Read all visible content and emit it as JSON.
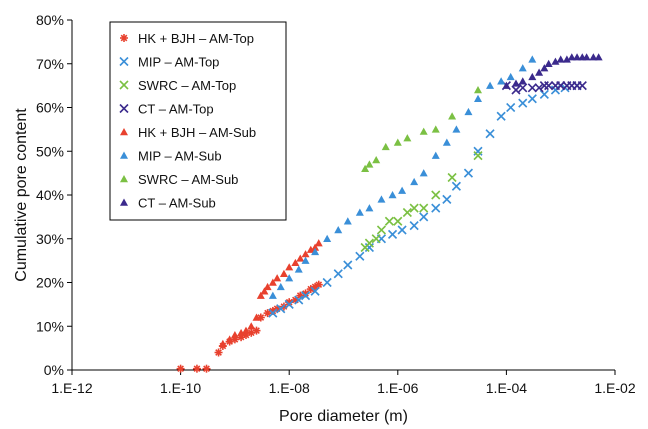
{
  "chart_data": {
    "type": "scatter",
    "title": "",
    "xlabel": "Pore diameter (m)",
    "ylabel": "Cumulative pore content",
    "x_scale": "log",
    "xlim": [
      1e-12,
      0.01
    ],
    "ylim": [
      0,
      0.8
    ],
    "x_ticks": [
      "1.E-12",
      "1.E-10",
      "1.E-08",
      "1.E-06",
      "1.E-04",
      "1.E-02"
    ],
    "y_ticks": [
      "0%",
      "10%",
      "20%",
      "30%",
      "40%",
      "50%",
      "60%",
      "70%",
      "80%"
    ],
    "grid": false,
    "legend_position": "top-left",
    "series": [
      {
        "name": "HK + BJH – AM-Top",
        "marker": "star",
        "color": "#e8412e",
        "x": [
          1e-10,
          2e-10,
          3e-10,
          5e-10,
          6e-10,
          8e-10,
          1e-09,
          1.3e-09,
          1.6e-09,
          2e-09,
          2.5e-09,
          3e-09,
          4e-09,
          5e-09,
          6e-09,
          8e-09,
          1e-08,
          1.3e-08,
          1.6e-08,
          2e-08,
          2.5e-08,
          3e-08,
          3.5e-08
        ],
        "y": [
          0.003,
          0.003,
          0.003,
          0.04,
          0.055,
          0.065,
          0.07,
          0.075,
          0.08,
          0.085,
          0.09,
          0.12,
          0.13,
          0.135,
          0.14,
          0.145,
          0.155,
          0.16,
          0.17,
          0.175,
          0.185,
          0.19,
          0.195
        ]
      },
      {
        "name": "MIP – AM-Top",
        "marker": "x",
        "color": "#3a8fd8",
        "x": [
          5e-09,
          7e-09,
          1e-08,
          1.5e-08,
          2e-08,
          3e-08,
          5e-08,
          8e-08,
          1.2e-07,
          2e-07,
          3e-07,
          5e-07,
          8e-07,
          1.2e-06,
          2e-06,
          3e-06,
          5e-06,
          8e-06,
          1.2e-05,
          2e-05,
          3e-05,
          5e-05,
          8e-05,
          0.00012,
          0.0002,
          0.0003,
          0.0005,
          0.0008,
          0.0012,
          0.002
        ],
        "y": [
          0.13,
          0.14,
          0.15,
          0.16,
          0.17,
          0.18,
          0.2,
          0.22,
          0.24,
          0.26,
          0.28,
          0.3,
          0.31,
          0.32,
          0.33,
          0.35,
          0.37,
          0.39,
          0.42,
          0.45,
          0.5,
          0.54,
          0.58,
          0.6,
          0.61,
          0.62,
          0.63,
          0.64,
          0.645,
          0.65
        ]
      },
      {
        "name": "SWRC – AM-Top",
        "marker": "x",
        "color": "#7bc043",
        "x": [
          2.5e-07,
          3e-07,
          4e-07,
          5e-07,
          7e-07,
          1e-06,
          1.5e-06,
          2e-06,
          3e-06,
          5e-06,
          1e-05,
          3e-05
        ],
        "y": [
          0.28,
          0.29,
          0.3,
          0.32,
          0.34,
          0.34,
          0.36,
          0.37,
          0.37,
          0.4,
          0.44,
          0.49
        ]
      },
      {
        "name": "CT – AM-Top",
        "marker": "x",
        "color": "#3b2a8c",
        "x": [
          0.0001,
          0.00015,
          0.0002,
          0.0003,
          0.0004,
          0.0005,
          0.0006,
          0.0008,
          0.001,
          0.0013,
          0.0016,
          0.002,
          0.0025
        ],
        "y": [
          0.65,
          0.64,
          0.645,
          0.645,
          0.645,
          0.65,
          0.65,
          0.65,
          0.65,
          0.65,
          0.65,
          0.65,
          0.65
        ]
      },
      {
        "name": "HK + BJH – AM-Sub",
        "marker": "triangle",
        "color": "#e8412e",
        "x": [
          6e-10,
          8e-10,
          1e-09,
          1.3e-09,
          1.6e-09,
          2e-09,
          2.5e-09,
          3e-09,
          3.5e-09,
          4e-09,
          5e-09,
          6e-09,
          8e-09,
          1e-08,
          1.3e-08,
          1.6e-08,
          2e-08,
          2.5e-08,
          3e-08,
          3.5e-08
        ],
        "y": [
          0.06,
          0.07,
          0.08,
          0.085,
          0.09,
          0.1,
          0.12,
          0.17,
          0.18,
          0.19,
          0.2,
          0.21,
          0.22,
          0.235,
          0.245,
          0.255,
          0.265,
          0.275,
          0.28,
          0.29
        ]
      },
      {
        "name": "MIP – AM-Sub",
        "marker": "triangle",
        "color": "#3a8fd8",
        "x": [
          5e-09,
          7e-09,
          1e-08,
          1.5e-08,
          2e-08,
          3e-08,
          5e-08,
          8e-08,
          1.2e-07,
          2e-07,
          3e-07,
          5e-07,
          8e-07,
          1.2e-06,
          2e-06,
          3e-06,
          5e-06,
          8e-06,
          1.2e-05,
          2e-05,
          3e-05,
          5e-05,
          8e-05,
          0.00012,
          0.0002,
          0.0003
        ],
        "y": [
          0.17,
          0.19,
          0.21,
          0.23,
          0.25,
          0.27,
          0.3,
          0.32,
          0.34,
          0.36,
          0.37,
          0.39,
          0.4,
          0.41,
          0.43,
          0.45,
          0.49,
          0.52,
          0.55,
          0.59,
          0.62,
          0.65,
          0.66,
          0.67,
          0.69,
          0.71
        ]
      },
      {
        "name": "SWRC – AM-Sub",
        "marker": "triangle",
        "color": "#7bc043",
        "x": [
          2.5e-07,
          3e-07,
          4e-07,
          6e-07,
          1e-06,
          1.5e-06,
          3e-06,
          5e-06,
          1e-05,
          3e-05
        ],
        "y": [
          0.46,
          0.47,
          0.48,
          0.51,
          0.52,
          0.53,
          0.545,
          0.55,
          0.58,
          0.64
        ]
      },
      {
        "name": "CT – AM-Sub",
        "marker": "triangle",
        "color": "#3b2a8c",
        "x": [
          0.0001,
          0.00015,
          0.0002,
          0.0003,
          0.0004,
          0.0005,
          0.0006,
          0.0008,
          0.001,
          0.0013,
          0.0016,
          0.002,
          0.0025,
          0.003,
          0.004,
          0.005
        ],
        "y": [
          0.65,
          0.655,
          0.66,
          0.67,
          0.68,
          0.69,
          0.7,
          0.705,
          0.71,
          0.71,
          0.715,
          0.715,
          0.715,
          0.715,
          0.715,
          0.715
        ]
      }
    ]
  }
}
